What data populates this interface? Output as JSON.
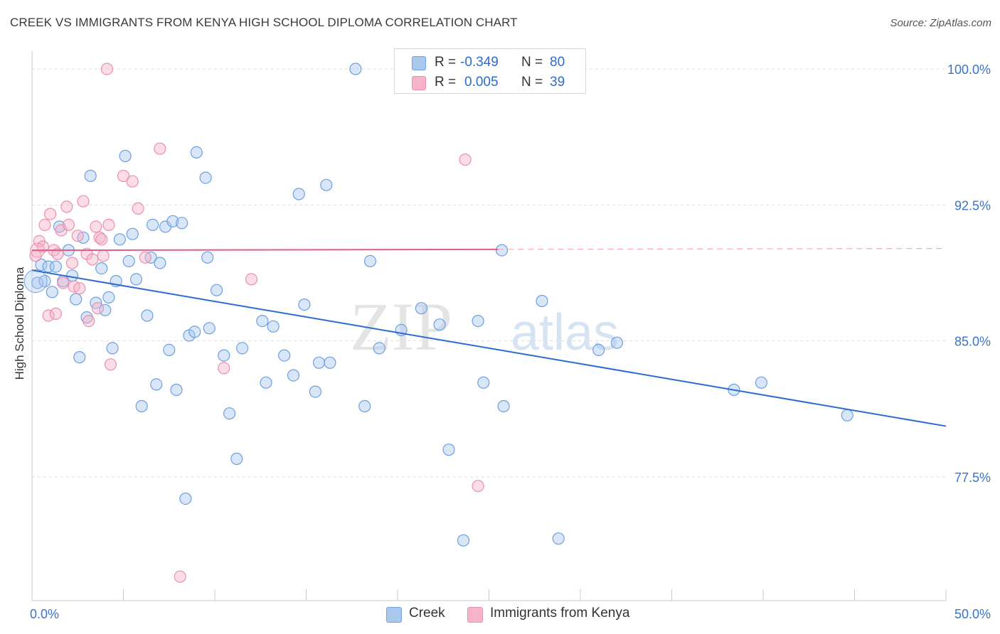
{
  "title": "CREEK VS IMMIGRANTS FROM KENYA HIGH SCHOOL DIPLOMA CORRELATION CHART",
  "source": "Source: ZipAtlas.com",
  "watermark": {
    "part1": "ZIP",
    "part2": "atlas"
  },
  "legend_top": [
    {
      "r_label": "R =",
      "r_value": "-0.349",
      "n_label": "N =",
      "n_value": "80",
      "color": "#a9c8ee"
    },
    {
      "r_label": "R =",
      "r_value": "0.005",
      "n_label": "N =",
      "n_value": "39",
      "color": "#f5b4c8"
    }
  ],
  "legend_bottom": [
    {
      "label": "Creek",
      "color": "#a9c8ee"
    },
    {
      "label": "Immigrants from Kenya",
      "color": "#f5b4c8"
    }
  ],
  "chart_data": {
    "type": "scatter",
    "title": "CREEK VS IMMIGRANTS FROM KENYA HIGH SCHOOL DIPLOMA CORRELATION CHART",
    "xlabel": "",
    "ylabel": "High School Diploma",
    "xlim": [
      0,
      50
    ],
    "ylim": [
      70,
      100.5
    ],
    "x_tick_labels": [
      {
        "value": 0,
        "label": "0.0%"
      },
      {
        "value": 50,
        "label": "50.0%"
      }
    ],
    "x_minor_ticks": [
      0,
      5,
      10,
      15,
      20,
      25,
      30,
      35,
      40,
      45,
      50
    ],
    "y_ticks": [
      {
        "value": 100,
        "label": "100.0%"
      },
      {
        "value": 92.5,
        "label": "92.5%"
      },
      {
        "value": 85,
        "label": "85.0%"
      },
      {
        "value": 77.5,
        "label": "77.5%"
      }
    ],
    "grid": true,
    "series": [
      {
        "name": "Creek",
        "color": "#2c6bcf",
        "fill": "#a9c8ee",
        "stroke": "#6f9fdf",
        "trend": {
          "x1": 0,
          "y1": 88.9,
          "x2": 50,
          "y2": 80.3
        },
        "points": [
          [
            0.3,
            88.2
          ],
          [
            0.5,
            89.2
          ],
          [
            0.7,
            88.3
          ],
          [
            0.9,
            89.1
          ],
          [
            1.1,
            87.7
          ],
          [
            1.3,
            89.1
          ],
          [
            1.5,
            91.3
          ],
          [
            1.7,
            88.3
          ],
          [
            2.0,
            90.0
          ],
          [
            2.2,
            88.6
          ],
          [
            2.4,
            87.3
          ],
          [
            2.6,
            84.1
          ],
          [
            2.8,
            90.7
          ],
          [
            3.0,
            86.3
          ],
          [
            3.2,
            94.1
          ],
          [
            3.5,
            87.1
          ],
          [
            3.8,
            89.0
          ],
          [
            4.0,
            86.7
          ],
          [
            4.2,
            87.4
          ],
          [
            4.4,
            84.6
          ],
          [
            4.6,
            88.3
          ],
          [
            4.8,
            90.6
          ],
          [
            5.1,
            95.2
          ],
          [
            5.3,
            89.4
          ],
          [
            5.5,
            90.9
          ],
          [
            5.7,
            88.4
          ],
          [
            6.0,
            81.4
          ],
          [
            6.3,
            86.4
          ],
          [
            6.5,
            89.6
          ],
          [
            6.6,
            91.4
          ],
          [
            6.8,
            82.6
          ],
          [
            7.0,
            89.3
          ],
          [
            7.3,
            91.3
          ],
          [
            7.5,
            84.5
          ],
          [
            7.7,
            91.6
          ],
          [
            7.9,
            82.3
          ],
          [
            8.2,
            91.5
          ],
          [
            8.4,
            76.3
          ],
          [
            8.6,
            85.3
          ],
          [
            8.9,
            85.5
          ],
          [
            9.0,
            95.4
          ],
          [
            9.5,
            94.0
          ],
          [
            9.6,
            89.6
          ],
          [
            9.7,
            85.7
          ],
          [
            10.1,
            87.8
          ],
          [
            10.5,
            84.2
          ],
          [
            10.8,
            81.0
          ],
          [
            11.2,
            78.5
          ],
          [
            11.5,
            84.6
          ],
          [
            12.6,
            86.1
          ],
          [
            12.8,
            82.7
          ],
          [
            13.2,
            85.8
          ],
          [
            13.8,
            84.2
          ],
          [
            14.3,
            83.1
          ],
          [
            14.6,
            93.1
          ],
          [
            14.9,
            87.0
          ],
          [
            15.5,
            82.2
          ],
          [
            15.7,
            83.8
          ],
          [
            16.1,
            93.6
          ],
          [
            16.3,
            83.8
          ],
          [
            17.7,
            100.0
          ],
          [
            18.2,
            81.4
          ],
          [
            18.5,
            89.4
          ],
          [
            19.0,
            84.6
          ],
          [
            20.2,
            85.6
          ],
          [
            21.3,
            86.8
          ],
          [
            22.3,
            85.9
          ],
          [
            22.8,
            79.0
          ],
          [
            23.6,
            74.0
          ],
          [
            24.4,
            86.1
          ],
          [
            24.7,
            82.7
          ],
          [
            25.7,
            90.0
          ],
          [
            25.8,
            81.4
          ],
          [
            27.9,
            87.2
          ],
          [
            28.8,
            74.1
          ],
          [
            31.0,
            84.5
          ],
          [
            32.0,
            84.9
          ],
          [
            38.4,
            82.3
          ],
          [
            39.9,
            82.7
          ],
          [
            44.6,
            80.9
          ]
        ]
      },
      {
        "name": "Immigrants from Kenya",
        "color": "#e35b87",
        "fill": "#f5b4c8",
        "stroke": "#ec8fae",
        "trend": {
          "x1": 0,
          "y1": 90.0,
          "x2": 25.5,
          "y2": 90.05,
          "dash_to_x": 50,
          "dash_to_y": 90.1
        },
        "points": [
          [
            0.2,
            89.7
          ],
          [
            0.4,
            90.5
          ],
          [
            0.6,
            90.2
          ],
          [
            0.7,
            91.4
          ],
          [
            0.9,
            86.4
          ],
          [
            1.0,
            92.0
          ],
          [
            1.2,
            90.0
          ],
          [
            1.3,
            86.5
          ],
          [
            1.4,
            89.8
          ],
          [
            1.6,
            91.1
          ],
          [
            1.7,
            88.2
          ],
          [
            1.9,
            92.4
          ],
          [
            2.0,
            91.4
          ],
          [
            2.2,
            89.3
          ],
          [
            2.3,
            88.0
          ],
          [
            2.5,
            90.8
          ],
          [
            2.6,
            87.9
          ],
          [
            2.8,
            92.7
          ],
          [
            3.0,
            89.8
          ],
          [
            3.1,
            86.1
          ],
          [
            3.3,
            89.5
          ],
          [
            3.5,
            91.3
          ],
          [
            3.6,
            86.8
          ],
          [
            3.7,
            90.7
          ],
          [
            3.8,
            90.6
          ],
          [
            3.9,
            89.7
          ],
          [
            4.1,
            100.0
          ],
          [
            4.2,
            91.4
          ],
          [
            4.3,
            83.7
          ],
          [
            5.0,
            94.1
          ],
          [
            5.5,
            93.8
          ],
          [
            5.8,
            92.3
          ],
          [
            6.2,
            89.6
          ],
          [
            7.0,
            95.6
          ],
          [
            8.1,
            72.0
          ],
          [
            10.5,
            83.5
          ],
          [
            12.0,
            88.4
          ],
          [
            23.7,
            95.0
          ],
          [
            24.4,
            77.0
          ]
        ]
      }
    ]
  }
}
